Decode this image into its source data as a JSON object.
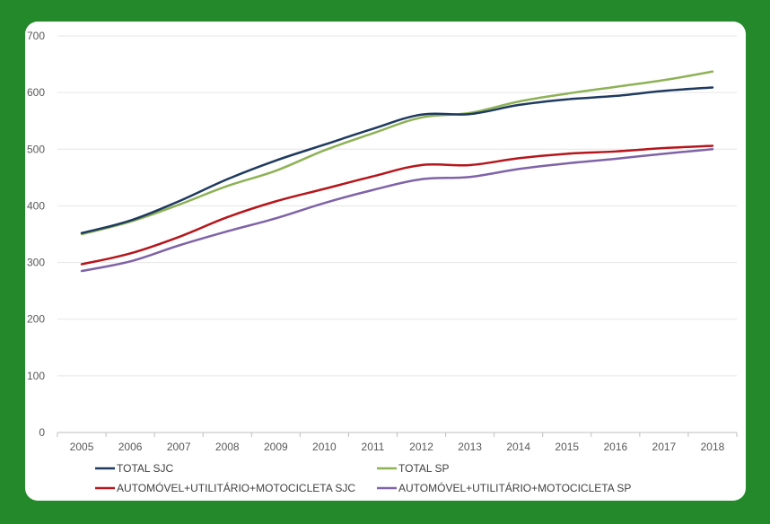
{
  "colors": {
    "background": "#24892a",
    "panel": "#ffffff",
    "grid": "#e6e6e6"
  },
  "chart_data": {
    "type": "line",
    "title": "",
    "xlabel": "",
    "ylabel": "",
    "ylim": [
      0,
      700
    ],
    "yticks": [
      "0",
      "100",
      "200",
      "300",
      "400",
      "500",
      "600",
      "700"
    ],
    "categories": [
      "2005",
      "2006",
      "2007",
      "2008",
      "2009",
      "2010",
      "2011",
      "2012",
      "2013",
      "2014",
      "2015",
      "2016",
      "2017",
      "2018"
    ],
    "grid": "horizontal",
    "legend_position": "bottom",
    "series": [
      {
        "name": "TOTAL SJC",
        "color": "#1f3a5f",
        "values": [
          352,
          374,
          408,
          447,
          480,
          508,
          536,
          561,
          562,
          578,
          588,
          594,
          603,
          609
        ]
      },
      {
        "name": "TOTAL SP",
        "color": "#8db255",
        "values": [
          350,
          372,
          402,
          435,
          462,
          498,
          528,
          556,
          564,
          584,
          598,
          610,
          622,
          637
        ]
      },
      {
        "name": "AUTOMÓVEL+UTILITÁRIO+MOTOCICLETA SJC",
        "color": "#b5161b",
        "values": [
          297,
          316,
          345,
          380,
          408,
          430,
          452,
          472,
          472,
          484,
          492,
          496,
          502,
          506
        ]
      },
      {
        "name": "AUTOMÓVEL+UTILITÁRIO+MOTOCICLETA SP",
        "color": "#7f63a7",
        "values": [
          285,
          302,
          330,
          355,
          378,
          405,
          428,
          447,
          451,
          465,
          475,
          483,
          492,
          500
        ]
      }
    ]
  }
}
